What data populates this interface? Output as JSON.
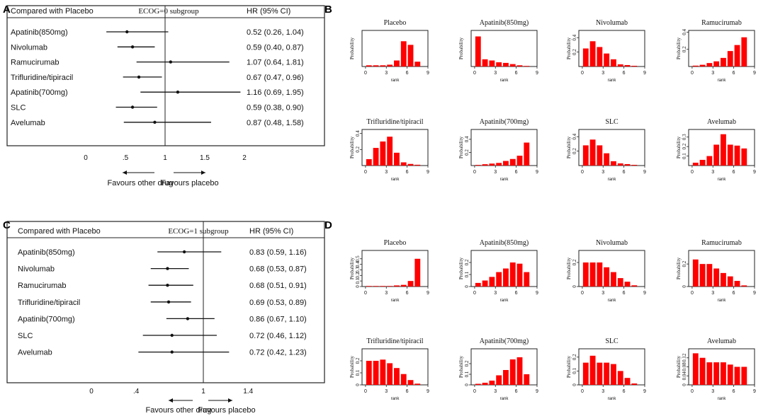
{
  "panel_letters": [
    "A",
    "B",
    "C",
    "D"
  ],
  "chart_data": [
    {
      "panel": "A",
      "type": "forest",
      "header_left": "Compared with Placebo",
      "title": "ECOG=0  subgroup",
      "header_right": "HR (95% CI)",
      "x_ticks": [
        0,
        0.5,
        1,
        1.5,
        2
      ],
      "x_tick_labels": [
        "0",
        ".5",
        "1",
        "1.5",
        "2"
      ],
      "xlim": [
        0,
        2
      ],
      "left_arrow_label": "Favours other drug",
      "right_arrow_label": "Favours placebo",
      "rows": [
        {
          "label": "Apatinib(850mg)",
          "hr": 0.52,
          "lo": 0.26,
          "hi": 1.04,
          "text": "0.52 (0.26, 1.04)"
        },
        {
          "label": "Nivolumab",
          "hr": 0.59,
          "lo": 0.4,
          "hi": 0.87,
          "text": "0.59 (0.40, 0.87)"
        },
        {
          "label": "Ramucirumab",
          "hr": 1.07,
          "lo": 0.64,
          "hi": 1.81,
          "text": "1.07 (0.64, 1.81)"
        },
        {
          "label": "Trifluridine/tipiracil",
          "hr": 0.67,
          "lo": 0.47,
          "hi": 0.96,
          "text": "0.67 (0.47, 0.96)"
        },
        {
          "label": "Apatinib(700mg)",
          "hr": 1.16,
          "lo": 0.69,
          "hi": 1.95,
          "text": "1.16 (0.69, 1.95)"
        },
        {
          "label": "SLC",
          "hr": 0.59,
          "lo": 0.38,
          "hi": 0.9,
          "text": "0.59 (0.38, 0.90)"
        },
        {
          "label": "Avelumab",
          "hr": 0.87,
          "lo": 0.48,
          "hi": 1.58,
          "text": "0.87 (0.48, 1.58)"
        }
      ]
    },
    {
      "panel": "C",
      "type": "forest",
      "header_left": "Compared with Placebo",
      "title": "ECOG=1  subgroup",
      "header_right": "HR (95% CI)",
      "x_ticks": [
        0,
        0.4,
        1,
        1.4
      ],
      "x_tick_labels": [
        "0",
        ".4",
        "1",
        "1.4"
      ],
      "xlim": [
        0,
        1.4
      ],
      "left_arrow_label": "Favours other drug",
      "right_arrow_label": "Favours placebo",
      "rows": [
        {
          "label": "Apatinib(850mg)",
          "hr": 0.83,
          "lo": 0.59,
          "hi": 1.16,
          "text": "0.83 (0.59, 1.16)"
        },
        {
          "label": "Nivolumab",
          "hr": 0.68,
          "lo": 0.53,
          "hi": 0.87,
          "text": "0.68 (0.53, 0.87)"
        },
        {
          "label": "Ramucirumab",
          "hr": 0.68,
          "lo": 0.51,
          "hi": 0.91,
          "text": "0.68 (0.51, 0.91)"
        },
        {
          "label": "Trifluridine/tipiracil",
          "hr": 0.69,
          "lo": 0.53,
          "hi": 0.89,
          "text": "0.69 (0.53, 0.89)"
        },
        {
          "label": "Apatinib(700mg)",
          "hr": 0.86,
          "lo": 0.67,
          "hi": 1.1,
          "text": "0.86 (0.67, 1.10)"
        },
        {
          "label": "SLC",
          "hr": 0.72,
          "lo": 0.46,
          "hi": 1.12,
          "text": "0.72 (0.46, 1.12)"
        },
        {
          "label": "Avelumab",
          "hr": 0.72,
          "lo": 0.42,
          "hi": 1.23,
          "text": "0.72 (0.42, 1.23)"
        }
      ]
    },
    {
      "panel": "B",
      "type": "bar",
      "xlabel": "rank",
      "ylabel": "Probability",
      "x_ticks": [
        0,
        3,
        6,
        9
      ],
      "x_tick_labels": [
        "0",
        "3",
        "6",
        "9"
      ],
      "xlim": [
        -0.5,
        9
      ],
      "bar_color": "#ff0000",
      "subplots": [
        {
          "title": "Placebo",
          "yticks": [],
          "ylim": [
            0,
            0.6
          ],
          "values": [
            0.02,
            0.02,
            0.02,
            0.03,
            0.1,
            0.42,
            0.36,
            0.08
          ]
        },
        {
          "title": "Apatinib(850mg)",
          "yticks": [],
          "ylim": [
            0,
            0.6
          ],
          "values": [
            0.5,
            0.12,
            0.1,
            0.07,
            0.06,
            0.04,
            0.02,
            0.01
          ]
        },
        {
          "title": "Nivolumab",
          "yticks": [
            0.2,
            0.4
          ],
          "ylim": [
            0,
            0.5
          ],
          "values": [
            0.25,
            0.35,
            0.27,
            0.18,
            0.1,
            0.03,
            0.02,
            0.01
          ]
        },
        {
          "title": "Ramucirumab",
          "yticks": [
            0.2,
            0.4
          ],
          "ylim": [
            0,
            0.42
          ],
          "values": [
            0.01,
            0.02,
            0.04,
            0.06,
            0.1,
            0.18,
            0.25,
            0.34
          ]
        },
        {
          "title": "Trifluridine/tipiracil",
          "yticks": [
            0.2,
            0.4
          ],
          "ylim": [
            0,
            0.45
          ],
          "values": [
            0.08,
            0.22,
            0.3,
            0.36,
            0.16,
            0.04,
            0.02,
            0.01
          ]
        },
        {
          "title": "Apatinib(700mg)",
          "yticks": [
            0.2,
            0.4
          ],
          "ylim": [
            0,
            0.55
          ],
          "values": [
            0.01,
            0.02,
            0.03,
            0.04,
            0.07,
            0.1,
            0.15,
            0.35
          ]
        },
        {
          "title": "SLC",
          "yticks": [
            0.2,
            0.4
          ],
          "ylim": [
            0,
            0.5
          ],
          "values": [
            0.28,
            0.36,
            0.28,
            0.17,
            0.06,
            0.03,
            0.02,
            0.01
          ]
        },
        {
          "title": "Avelumab",
          "yticks": [
            0.1,
            0.2,
            0.3
          ],
          "ylim": [
            0,
            0.38
          ],
          "values": [
            0.03,
            0.06,
            0.1,
            0.22,
            0.33,
            0.22,
            0.21,
            0.18
          ]
        }
      ]
    },
    {
      "panel": "D",
      "type": "bar",
      "xlabel": "rank",
      "ylabel": "Probability",
      "x_ticks": [
        0,
        3,
        6,
        9
      ],
      "x_tick_labels": [
        "0",
        "3",
        "6",
        "9"
      ],
      "xlim": [
        -0.5,
        9
      ],
      "bar_color": "#ff0000",
      "subplots": [
        {
          "title": "Placebo",
          "yticks": [
            0.0,
            0.1,
            0.2,
            0.3,
            0.4,
            0.5
          ],
          "ylim": [
            0,
            0.65
          ],
          "values": [
            0.01,
            0.01,
            0.01,
            0.01,
            0.02,
            0.03,
            0.1,
            0.5
          ]
        },
        {
          "title": "Apatinib(850mg)",
          "yticks": [
            0.0,
            0.1,
            0.2
          ],
          "ylim": [
            0,
            0.3
          ],
          "values": [
            0.03,
            0.05,
            0.08,
            0.12,
            0.15,
            0.2,
            0.19,
            0.12
          ]
        },
        {
          "title": "Nivolumab",
          "yticks": [
            0.0,
            0.2
          ],
          "ylim": [
            0,
            0.3
          ],
          "values": [
            0.2,
            0.2,
            0.2,
            0.16,
            0.12,
            0.07,
            0.04,
            0.01
          ]
        },
        {
          "title": "Ramucirumab",
          "yticks": [
            0.0,
            0.2
          ],
          "ylim": [
            0,
            0.32
          ],
          "values": [
            0.24,
            0.2,
            0.2,
            0.16,
            0.12,
            0.09,
            0.05,
            0.01
          ]
        },
        {
          "title": "Trifluridine/tipiracil",
          "yticks": [
            0.0,
            0.1,
            0.2
          ],
          "ylim": [
            0,
            0.3
          ],
          "values": [
            0.2,
            0.2,
            0.21,
            0.18,
            0.14,
            0.09,
            0.04,
            0.01
          ]
        },
        {
          "title": "Apatinib(700mg)",
          "yticks": [
            0.0,
            0.1,
            0.2
          ],
          "ylim": [
            0,
            0.34
          ],
          "values": [
            0.01,
            0.02,
            0.04,
            0.09,
            0.14,
            0.24,
            0.26,
            0.1
          ]
        },
        {
          "title": "SLC",
          "yticks": [
            0.0,
            0.1,
            0.2
          ],
          "ylim": [
            0,
            0.26
          ],
          "values": [
            0.16,
            0.21,
            0.16,
            0.16,
            0.15,
            0.1,
            0.05,
            0.01
          ]
        },
        {
          "title": "Avelumab",
          "yticks": [
            0.0,
            0.04,
            0.08,
            0.12
          ],
          "ylim": [
            0,
            0.16
          ],
          "values": [
            0.14,
            0.12,
            0.1,
            0.1,
            0.1,
            0.09,
            0.08,
            0.08
          ]
        }
      ]
    }
  ]
}
